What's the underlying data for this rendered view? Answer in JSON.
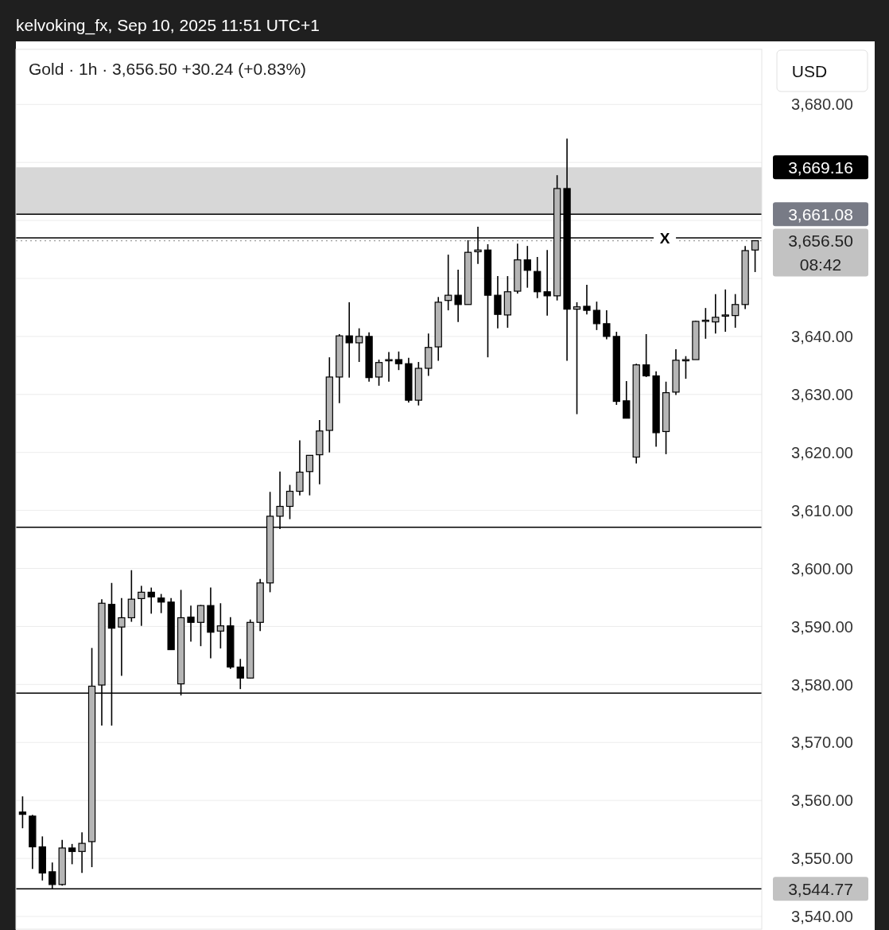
{
  "chart_data": {
    "type": "candlestick",
    "title": "Gold · 1h · 3,656.50 +30.24 (+0.83%)",
    "subtitle": "kelvoking_fx, Sep 10, 2025 11:51 UTC+1",
    "ylabel": "USD",
    "categories": [
      null,
      null,
      null,
      null,
      null,
      null,
      null,
      null,
      null,
      null,
      null,
      null,
      null,
      null,
      null,
      null,
      null,
      null,
      null,
      null,
      null,
      null,
      null,
      null,
      null,
      null,
      null,
      null,
      null,
      null,
      null,
      null,
      null,
      null,
      null,
      null,
      null,
      null,
      null,
      null,
      null,
      null,
      null,
      null,
      null,
      null,
      null,
      null,
      null,
      null,
      null,
      null,
      null,
      null,
      null,
      null,
      null,
      null,
      null,
      null,
      null,
      null,
      null,
      null,
      null,
      null,
      null,
      null,
      null,
      null,
      null,
      null,
      null,
      null,
      null
    ],
    "ohlc": [
      [
        3558,
        3560.7,
        3555.2,
        3557.6
      ],
      [
        3557.3,
        3557.5,
        3548.2,
        3552
      ],
      [
        3552,
        3553.8,
        3546.2,
        3547.5
      ],
      [
        3547.7,
        3549.3,
        3544.8,
        3545.5
      ],
      [
        3545.5,
        3553.2,
        3545.3,
        3551.8
      ],
      [
        3551.8,
        3552.5,
        3549,
        3551.2
      ],
      [
        3551.2,
        3554.5,
        3547.5,
        3552.6
      ],
      [
        3552.9,
        3586.3,
        3548.5,
        3579.7
      ],
      [
        3579.9,
        3594.7,
        3572.9,
        3594
      ],
      [
        3593.8,
        3597.5,
        3572.9,
        3589.7
      ],
      [
        3589.9,
        3594.9,
        3581.5,
        3591.5
      ],
      [
        3591.5,
        3599.7,
        3590.8,
        3594.7
      ],
      [
        3594.8,
        3597,
        3590.1,
        3595.9
      ],
      [
        3595.9,
        3596.7,
        3592.2,
        3595.1
      ],
      [
        3594.9,
        3595.6,
        3592.3,
        3594.2
      ],
      [
        3594.2,
        3594.9,
        3586,
        3586
      ],
      [
        3580.1,
        3596.3,
        3578.1,
        3591.5
      ],
      [
        3591.6,
        3593.6,
        3587.4,
        3590.7
      ],
      [
        3590.7,
        3593.7,
        3586.6,
        3593.6
      ],
      [
        3593.6,
        3596.7,
        3584.5,
        3589
      ],
      [
        3589.2,
        3594,
        3586.2,
        3590.1
      ],
      [
        3590.1,
        3591.6,
        3582.7,
        3583
      ],
      [
        3583,
        3584.4,
        3579.2,
        3581.1
      ],
      [
        3581.1,
        3591.2,
        3581,
        3590.7
      ],
      [
        3590.7,
        3598.2,
        3589.2,
        3597.5
      ],
      [
        3597.5,
        3613.2,
        3595.9,
        3609
      ],
      [
        3609,
        3616.7,
        3606.8,
        3610.7
      ],
      [
        3610.7,
        3614.4,
        3608.5,
        3613.3
      ],
      [
        3613.3,
        3622.1,
        3612.6,
        3616.6
      ],
      [
        3616.7,
        3619.5,
        3612.6,
        3619.5
      ],
      [
        3619.6,
        3625.6,
        3614.5,
        3623.7
      ],
      [
        3623.8,
        3636.4,
        3620,
        3633
      ],
      [
        3633,
        3640.4,
        3628.5,
        3640.1
      ],
      [
        3640.1,
        3645.9,
        3632.9,
        3638.9
      ],
      [
        3638.9,
        3641.4,
        3635.6,
        3640
      ],
      [
        3640,
        3640.7,
        3632.2,
        3632.9
      ],
      [
        3633,
        3636,
        3631.5,
        3635.5
      ],
      [
        3635.8,
        3637.3,
        3632.2,
        3636
      ],
      [
        3636,
        3637.4,
        3634.2,
        3635.3
      ],
      [
        3635.3,
        3636.3,
        3628.6,
        3629
      ],
      [
        3629,
        3635.6,
        3628.1,
        3634.5
      ],
      [
        3634.5,
        3640.5,
        3633.2,
        3638.1
      ],
      [
        3638.2,
        3646.8,
        3635.8,
        3645.9
      ],
      [
        3646.2,
        3654.1,
        3644.5,
        3647.1
      ],
      [
        3647.1,
        3651.5,
        3642.5,
        3645.5
      ],
      [
        3645.5,
        3656.6,
        3645.5,
        3654.5
      ],
      [
        3654.6,
        3658.9,
        3652.5,
        3654.9
      ],
      [
        3654.9,
        3655.9,
        3636.4,
        3647.1
      ],
      [
        3647.1,
        3650.4,
        3641.4,
        3643.8
      ],
      [
        3643.7,
        3650.4,
        3641.5,
        3647.7
      ],
      [
        3647.8,
        3656,
        3647.4,
        3653.2
      ],
      [
        3653.2,
        3655.6,
        3648.4,
        3651.4
      ],
      [
        3651.2,
        3653.7,
        3646.6,
        3647.7
      ],
      [
        3647.7,
        3654.9,
        3643.6,
        3647
      ],
      [
        3647,
        3667.8,
        3646.2,
        3665.5
      ],
      [
        3665.5,
        3674.1,
        3635.8,
        3644.7
      ],
      [
        3644.7,
        3645.9,
        3626.6,
        3645.1
      ],
      [
        3645.2,
        3648.9,
        3643.8,
        3644.5
      ],
      [
        3644.5,
        3646,
        3641.1,
        3642.2
      ],
      [
        3642.2,
        3644.5,
        3639.5,
        3640
      ],
      [
        3640,
        3640.8,
        3628.2,
        3628.8
      ],
      [
        3628.9,
        3632.3,
        3625.9,
        3625.9
      ],
      [
        3619.2,
        3635.3,
        3618.1,
        3635.1
      ],
      [
        3635.1,
        3640.4,
        3633,
        3633.2
      ],
      [
        3633.2,
        3634,
        3621,
        3623.4
      ],
      [
        3623.6,
        3632.2,
        3619.7,
        3630.3
      ],
      [
        3630.4,
        3637.8,
        3629.9,
        3635.9
      ],
      [
        3635.8,
        3636.6,
        3632.7,
        3636
      ],
      [
        3636,
        3642.7,
        3636,
        3642.6
      ],
      [
        3642.7,
        3644.9,
        3639.6,
        3642.8
      ],
      [
        3642.5,
        3647.3,
        3640.5,
        3643.3
      ],
      [
        3643.5,
        3648.1,
        3640.8,
        3643.7
      ],
      [
        3643.6,
        3647.3,
        3641.5,
        3645.5
      ],
      [
        3645.5,
        3655.6,
        3644.7,
        3654.8
      ],
      [
        3654.9,
        3656.6,
        3651.1,
        3656.5
      ]
    ],
    "ylim": [
      3537.8,
      3689.5
    ],
    "yticks": [
      {
        "value": 3540,
        "label": "3,540.00"
      },
      {
        "value": 3550,
        "label": "3,550.00"
      },
      {
        "value": 3560,
        "label": "3,560.00"
      },
      {
        "value": 3570,
        "label": "3,570.00"
      },
      {
        "value": 3580,
        "label": "3,580.00"
      },
      {
        "value": 3590,
        "label": "3,590.00"
      },
      {
        "value": 3600,
        "label": "3,600.00"
      },
      {
        "value": 3610,
        "label": "3,610.00"
      },
      {
        "value": 3620,
        "label": "3,620.00"
      },
      {
        "value": 3630,
        "label": "3,630.00"
      },
      {
        "value": 3640,
        "label": "3,640.00"
      },
      {
        "value": 3650,
        "label": null
      },
      {
        "value": 3660,
        "label": null
      },
      {
        "value": 3670,
        "label": null
      },
      {
        "value": 3680,
        "label": "3,680.00"
      }
    ],
    "grid": "y",
    "tick_labels": "y",
    "ref_lines": [
      {
        "axis": "y",
        "value": 3661.08,
        "label": "3,661.08",
        "color": "#000000"
      },
      {
        "axis": "y",
        "value": 3657,
        "color": "#000000"
      },
      {
        "axis": "y",
        "value": 3656.5,
        "label": "3,656.50 08:42",
        "color": "#9e9e9e",
        "line_style": "dotted"
      },
      {
        "axis": "y",
        "value": 3607.1,
        "color": "#000000"
      },
      {
        "axis": "y",
        "value": 3578.5,
        "color": "#000000"
      },
      {
        "axis": "y",
        "value": 3544.77,
        "label": "3,544.77",
        "color": "#000000"
      }
    ],
    "bands": [
      {
        "axis": "y",
        "from": 3661.08,
        "to": 3669.16,
        "label": "3,669.16",
        "color": "#a6a6a6"
      }
    ],
    "annotations": [
      {
        "text": "X",
        "y": 3657
      }
    ]
  }
}
